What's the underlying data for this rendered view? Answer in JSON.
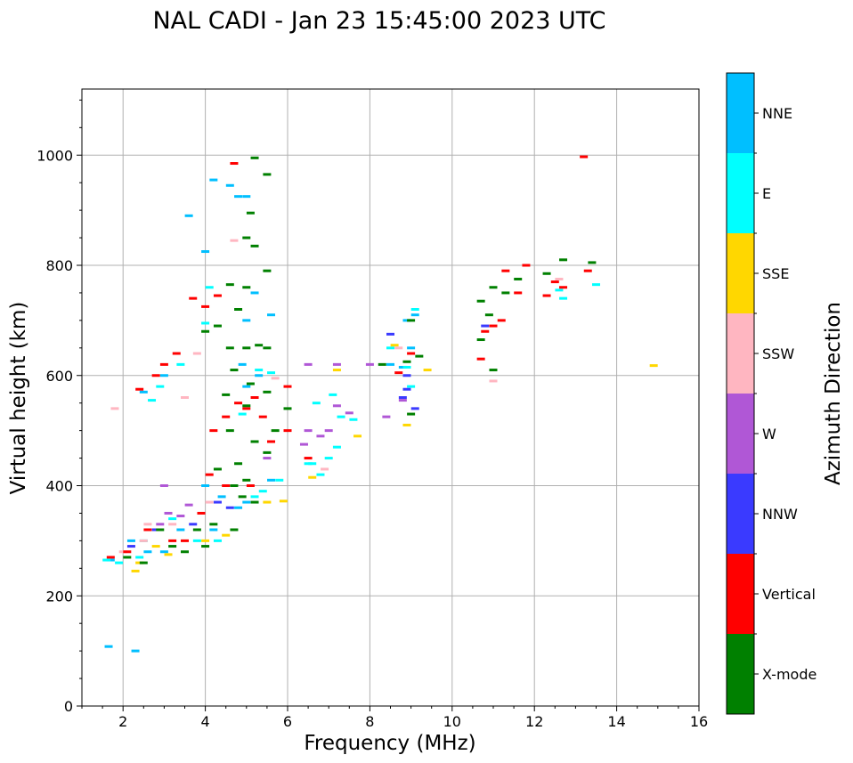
{
  "chart_data": {
    "type": "scatter",
    "title": "NAL CADI - Jan 23 15:45:00 2023 UTC",
    "xlabel": "Frequency (MHz)",
    "ylabel": "Virtual height (km)",
    "xlim": [
      1,
      16
    ],
    "ylim": [
      0,
      1120
    ],
    "xticks": [
      2,
      4,
      6,
      8,
      10,
      12,
      14,
      16
    ],
    "yticks": [
      0,
      200,
      400,
      600,
      800,
      1000
    ],
    "grid": true,
    "colorbar": {
      "title": "Azimuth Direction",
      "categories": [
        {
          "name": "X-mode",
          "color": "#008000"
        },
        {
          "name": "Vertical",
          "color": "#ff0000"
        },
        {
          "name": "NNW",
          "color": "#3a3aff"
        },
        {
          "name": "W",
          "color": "#b057d6"
        },
        {
          "name": "SSW",
          "color": "#ffb6c1"
        },
        {
          "name": "SSE",
          "color": "#ffd700"
        },
        {
          "name": "E",
          "color": "#00ffff"
        },
        {
          "name": "NNE",
          "color": "#00bfff"
        }
      ]
    },
    "series": [
      {
        "name": "NNE",
        "points": [
          [
            1.65,
            108
          ],
          [
            1.7,
            265
          ],
          [
            2.3,
            100
          ],
          [
            2.5,
            570
          ],
          [
            3.0,
            600
          ],
          [
            3.6,
            890
          ],
          [
            4.0,
            825
          ],
          [
            4.2,
            955
          ],
          [
            4.6,
            945
          ],
          [
            4.8,
            925
          ],
          [
            5.0,
            925
          ],
          [
            5.2,
            750
          ],
          [
            5.0,
            700
          ],
          [
            5.6,
            710
          ],
          [
            4.9,
            620
          ],
          [
            5.3,
            600
          ],
          [
            5.0,
            580
          ],
          [
            2.2,
            300
          ],
          [
            3.0,
            280
          ],
          [
            3.4,
            320
          ],
          [
            4.2,
            320
          ],
          [
            4.8,
            360
          ],
          [
            5.0,
            370
          ],
          [
            5.6,
            410
          ],
          [
            8.8,
            615
          ],
          [
            9.0,
            650
          ],
          [
            8.5,
            620
          ],
          [
            8.9,
            700
          ],
          [
            9.1,
            710
          ],
          [
            2.6,
            280
          ],
          [
            4.0,
            400
          ],
          [
            4.4,
            380
          ]
        ]
      },
      {
        "name": "E",
        "points": [
          [
            1.6,
            265
          ],
          [
            1.9,
            260
          ],
          [
            2.7,
            555
          ],
          [
            2.9,
            580
          ],
          [
            3.4,
            620
          ],
          [
            4.0,
            695
          ],
          [
            4.1,
            760
          ],
          [
            4.9,
            530
          ],
          [
            5.3,
            610
          ],
          [
            5.6,
            605
          ],
          [
            5.8,
            410
          ],
          [
            6.6,
            440
          ],
          [
            6.8,
            420
          ],
          [
            7.0,
            450
          ],
          [
            7.2,
            470
          ],
          [
            7.3,
            525
          ],
          [
            7.6,
            520
          ],
          [
            6.7,
            550
          ],
          [
            7.1,
            565
          ],
          [
            8.5,
            650
          ],
          [
            8.9,
            615
          ],
          [
            9.1,
            720
          ],
          [
            9.0,
            580
          ],
          [
            12.6,
            755
          ],
          [
            12.7,
            740
          ],
          [
            13.5,
            765
          ],
          [
            2.5,
            300
          ],
          [
            3.8,
            300
          ],
          [
            4.3,
            300
          ],
          [
            5.4,
            390
          ],
          [
            5.2,
            380
          ],
          [
            6.5,
            440
          ],
          [
            2.4,
            270
          ],
          [
            3.2,
            340
          ]
        ]
      },
      {
        "name": "SSE",
        "points": [
          [
            2.3,
            245
          ],
          [
            2.4,
            260
          ],
          [
            3.1,
            275
          ],
          [
            4.0,
            300
          ],
          [
            5.5,
            370
          ],
          [
            5.9,
            372
          ],
          [
            6.6,
            415
          ],
          [
            7.2,
            610
          ],
          [
            7.7,
            490
          ],
          [
            8.6,
            655
          ],
          [
            8.9,
            510
          ],
          [
            9.4,
            610
          ],
          [
            14.9,
            618
          ],
          [
            2.8,
            290
          ],
          [
            4.5,
            310
          ]
        ]
      },
      {
        "name": "SSW",
        "points": [
          [
            2.0,
            280
          ],
          [
            2.5,
            300
          ],
          [
            2.6,
            330
          ],
          [
            3.2,
            330
          ],
          [
            3.8,
            640
          ],
          [
            4.7,
            845
          ],
          [
            5.7,
            595
          ],
          [
            6.9,
            430
          ],
          [
            8.7,
            650
          ],
          [
            11.0,
            590
          ],
          [
            12.6,
            775
          ],
          [
            1.8,
            540
          ],
          [
            3.5,
            560
          ],
          [
            4.1,
            370
          ]
        ]
      },
      {
        "name": "W",
        "points": [
          [
            2.9,
            330
          ],
          [
            3.1,
            350
          ],
          [
            3.4,
            345
          ],
          [
            3.6,
            365
          ],
          [
            6.5,
            620
          ],
          [
            6.5,
            500
          ],
          [
            6.8,
            490
          ],
          [
            7.0,
            500
          ],
          [
            7.2,
            545
          ],
          [
            7.5,
            532
          ],
          [
            7.2,
            620
          ],
          [
            8.0,
            620
          ],
          [
            8.4,
            525
          ],
          [
            8.8,
            555
          ],
          [
            3.0,
            400
          ],
          [
            6.4,
            475
          ],
          [
            5.5,
            450
          ]
        ]
      },
      {
        "name": "NNW",
        "points": [
          [
            2.2,
            290
          ],
          [
            2.8,
            320
          ],
          [
            4.3,
            370
          ],
          [
            4.6,
            360
          ],
          [
            8.5,
            675
          ],
          [
            8.8,
            560
          ],
          [
            8.9,
            575
          ],
          [
            9.1,
            540
          ],
          [
            10.8,
            690
          ],
          [
            8.9,
            600
          ],
          [
            3.7,
            330
          ]
        ]
      },
      {
        "name": "Vertical",
        "points": [
          [
            1.7,
            270
          ],
          [
            2.1,
            280
          ],
          [
            2.4,
            575
          ],
          [
            2.8,
            600
          ],
          [
            3.0,
            620
          ],
          [
            3.3,
            640
          ],
          [
            3.7,
            740
          ],
          [
            4.0,
            725
          ],
          [
            4.3,
            745
          ],
          [
            4.7,
            985
          ],
          [
            13.2,
            997
          ],
          [
            4.2,
            500
          ],
          [
            4.5,
            525
          ],
          [
            4.8,
            550
          ],
          [
            5.2,
            560
          ],
          [
            5.4,
            525
          ],
          [
            5.6,
            480
          ],
          [
            6.0,
            500
          ],
          [
            6.5,
            450
          ],
          [
            5.0,
            540
          ],
          [
            6.0,
            580
          ],
          [
            10.7,
            630
          ],
          [
            10.8,
            680
          ],
          [
            11.0,
            690
          ],
          [
            11.2,
            700
          ],
          [
            11.3,
            790
          ],
          [
            11.6,
            750
          ],
          [
            11.8,
            800
          ],
          [
            12.3,
            745
          ],
          [
            12.5,
            770
          ],
          [
            12.7,
            760
          ],
          [
            13.3,
            790
          ],
          [
            9.0,
            640
          ],
          [
            8.7,
            605
          ],
          [
            3.9,
            350
          ],
          [
            3.5,
            300
          ],
          [
            2.6,
            320
          ],
          [
            3.2,
            300
          ],
          [
            4.1,
            420
          ],
          [
            4.5,
            400
          ],
          [
            5.1,
            400
          ]
        ]
      },
      {
        "name": "X-mode",
        "points": [
          [
            2.1,
            270
          ],
          [
            2.5,
            260
          ],
          [
            2.9,
            320
          ],
          [
            3.2,
            290
          ],
          [
            3.5,
            280
          ],
          [
            4.0,
            290
          ],
          [
            4.7,
            320
          ],
          [
            5.2,
            995
          ],
          [
            5.5,
            965
          ],
          [
            5.0,
            850
          ],
          [
            5.2,
            835
          ],
          [
            5.1,
            895
          ],
          [
            5.5,
            790
          ],
          [
            5.0,
            760
          ],
          [
            4.6,
            765
          ],
          [
            4.8,
            720
          ],
          [
            4.3,
            690
          ],
          [
            4.0,
            680
          ],
          [
            4.6,
            650
          ],
          [
            5.0,
            650
          ],
          [
            5.3,
            655
          ],
          [
            5.5,
            650
          ],
          [
            4.7,
            610
          ],
          [
            5.1,
            585
          ],
          [
            5.5,
            570
          ],
          [
            4.5,
            565
          ],
          [
            5.0,
            545
          ],
          [
            5.7,
            500
          ],
          [
            6.0,
            540
          ],
          [
            4.6,
            500
          ],
          [
            5.2,
            480
          ],
          [
            4.8,
            440
          ],
          [
            5.5,
            460
          ],
          [
            4.3,
            430
          ],
          [
            4.7,
            400
          ],
          [
            5.0,
            410
          ],
          [
            10.7,
            735
          ],
          [
            10.9,
            710
          ],
          [
            10.7,
            665
          ],
          [
            11.0,
            760
          ],
          [
            11.0,
            610
          ],
          [
            11.3,
            750
          ],
          [
            11.6,
            775
          ],
          [
            12.3,
            785
          ],
          [
            12.7,
            810
          ],
          [
            13.4,
            805
          ],
          [
            8.9,
            625
          ],
          [
            9.2,
            635
          ],
          [
            9.0,
            700
          ],
          [
            8.3,
            620
          ],
          [
            9.0,
            530
          ],
          [
            4.2,
            330
          ],
          [
            3.8,
            320
          ],
          [
            4.9,
            380
          ],
          [
            5.2,
            370
          ]
        ]
      }
    ]
  }
}
